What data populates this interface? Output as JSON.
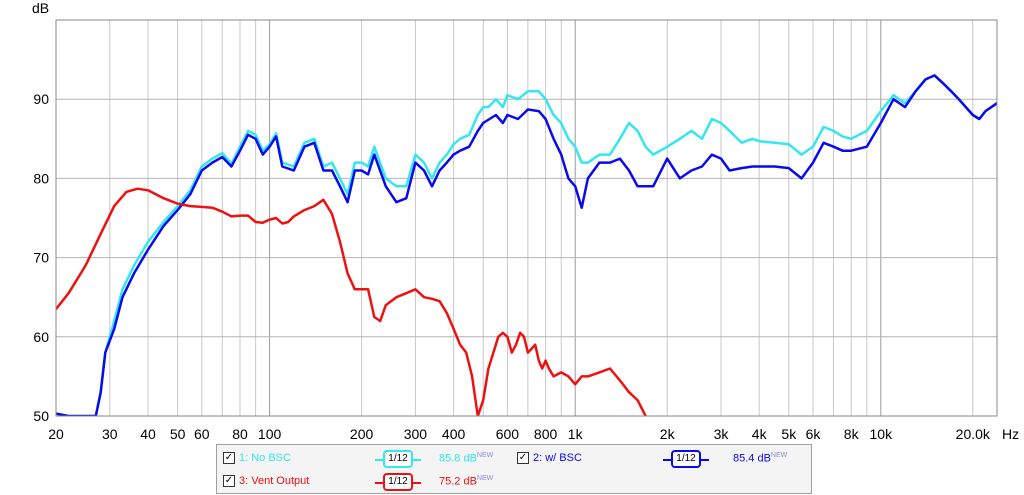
{
  "chart_data": {
    "type": "line",
    "x_scale": "log",
    "xlim": [
      20,
      24000
    ],
    "ylim": [
      50,
      100
    ],
    "ylabel": "dB",
    "xunit": "Hz",
    "grid": true,
    "y_ticks": [
      {
        "v": 50,
        "label": "50"
      },
      {
        "v": 60,
        "label": "60"
      },
      {
        "v": 70,
        "label": "70"
      },
      {
        "v": 80,
        "label": "80"
      },
      {
        "v": 90,
        "label": "90"
      }
    ],
    "x_ticks": [
      {
        "v": 20,
        "label": "20"
      },
      {
        "v": 30,
        "label": "30"
      },
      {
        "v": 40,
        "label": "40"
      },
      {
        "v": 50,
        "label": "50"
      },
      {
        "v": 60,
        "label": "60"
      },
      {
        "v": 80,
        "label": "80"
      },
      {
        "v": 100,
        "label": "100"
      },
      {
        "v": 200,
        "label": "200"
      },
      {
        "v": 300,
        "label": "300"
      },
      {
        "v": 400,
        "label": "400"
      },
      {
        "v": 600,
        "label": "600"
      },
      {
        "v": 800,
        "label": "800"
      },
      {
        "v": 1000,
        "label": "1k"
      },
      {
        "v": 2000,
        "label": "2k"
      },
      {
        "v": 3000,
        "label": "3k"
      },
      {
        "v": 4000,
        "label": "4k"
      },
      {
        "v": 5000,
        "label": "5k"
      },
      {
        "v": 6000,
        "label": "6k"
      },
      {
        "v": 8000,
        "label": "8k"
      },
      {
        "v": 10000,
        "label": "10k"
      },
      {
        "v": 20000,
        "label": "20.0k"
      }
    ],
    "series": [
      {
        "name": "1: No BSC",
        "color": "#33e6f0",
        "points": [
          [
            27,
            50
          ],
          [
            28,
            53
          ],
          [
            29,
            58
          ],
          [
            31,
            62
          ],
          [
            33,
            66
          ],
          [
            36,
            69
          ],
          [
            40,
            72
          ],
          [
            45,
            74.5
          ],
          [
            50,
            76.5
          ],
          [
            55,
            78.5
          ],
          [
            60,
            81.5
          ],
          [
            65,
            82.5
          ],
          [
            70,
            83.2
          ],
          [
            75,
            81.8
          ],
          [
            80,
            84
          ],
          [
            85,
            86
          ],
          [
            90,
            85.5
          ],
          [
            95,
            83.5
          ],
          [
            100,
            84.3
          ],
          [
            105,
            85.7
          ],
          [
            110,
            82
          ],
          [
            120,
            81.5
          ],
          [
            130,
            84.5
          ],
          [
            140,
            85
          ],
          [
            150,
            81.5
          ],
          [
            160,
            82
          ],
          [
            170,
            80
          ],
          [
            180,
            78
          ],
          [
            190,
            82
          ],
          [
            200,
            82
          ],
          [
            210,
            81.5
          ],
          [
            220,
            84
          ],
          [
            240,
            80
          ],
          [
            260,
            79
          ],
          [
            280,
            79
          ],
          [
            300,
            83
          ],
          [
            320,
            82
          ],
          [
            340,
            80
          ],
          [
            360,
            82
          ],
          [
            380,
            83
          ],
          [
            400,
            84.3
          ],
          [
            420,
            85
          ],
          [
            450,
            85.5
          ],
          [
            480,
            88
          ],
          [
            500,
            89
          ],
          [
            520,
            89
          ],
          [
            550,
            90
          ],
          [
            580,
            89
          ],
          [
            600,
            90.5
          ],
          [
            650,
            90
          ],
          [
            700,
            91
          ],
          [
            760,
            91
          ],
          [
            800,
            90
          ],
          [
            850,
            88
          ],
          [
            900,
            87
          ],
          [
            950,
            85
          ],
          [
            1000,
            84
          ],
          [
            1050,
            82
          ],
          [
            1100,
            82
          ],
          [
            1200,
            83
          ],
          [
            1300,
            83
          ],
          [
            1400,
            85
          ],
          [
            1500,
            87
          ],
          [
            1600,
            86
          ],
          [
            1700,
            84
          ],
          [
            1800,
            83
          ],
          [
            2000,
            84
          ],
          [
            2200,
            85
          ],
          [
            2400,
            86
          ],
          [
            2600,
            85
          ],
          [
            2800,
            87.5
          ],
          [
            3000,
            87
          ],
          [
            3200,
            86
          ],
          [
            3500,
            84.5
          ],
          [
            3800,
            85
          ],
          [
            4000,
            84.7
          ],
          [
            4500,
            84.5
          ],
          [
            5000,
            84.3
          ],
          [
            5500,
            83
          ],
          [
            6000,
            84
          ],
          [
            6500,
            86.5
          ],
          [
            7000,
            86
          ],
          [
            7500,
            85.3
          ],
          [
            8000,
            85
          ],
          [
            9000,
            86
          ],
          [
            10000,
            88.5
          ],
          [
            11000,
            90.5
          ],
          [
            12000,
            89.5
          ],
          [
            13000,
            91
          ],
          [
            14000,
            92.5
          ],
          [
            15000,
            93
          ],
          [
            16000,
            92
          ],
          [
            17000,
            91
          ],
          [
            18000,
            90
          ],
          [
            20000,
            88
          ],
          [
            21000,
            87.5
          ],
          [
            22000,
            88.5
          ],
          [
            24000,
            89.5
          ]
        ]
      },
      {
        "name": "2: w/ BSC",
        "color": "#0a0aee",
        "points": [
          [
            20,
            50.3
          ],
          [
            22,
            50
          ],
          [
            27,
            50
          ],
          [
            28,
            53
          ],
          [
            29,
            58
          ],
          [
            31,
            61
          ],
          [
            33,
            65
          ],
          [
            36,
            68
          ],
          [
            40,
            71
          ],
          [
            45,
            74
          ],
          [
            50,
            76
          ],
          [
            55,
            78
          ],
          [
            60,
            81
          ],
          [
            65,
            82
          ],
          [
            70,
            82.7
          ],
          [
            75,
            81.5
          ],
          [
            80,
            83.5
          ],
          [
            85,
            85.5
          ],
          [
            90,
            85
          ],
          [
            95,
            83
          ],
          [
            100,
            84
          ],
          [
            105,
            85.3
          ],
          [
            110,
            81.5
          ],
          [
            120,
            81
          ],
          [
            130,
            84
          ],
          [
            140,
            84.5
          ],
          [
            150,
            81
          ],
          [
            160,
            81
          ],
          [
            170,
            79
          ],
          [
            180,
            77
          ],
          [
            190,
            81
          ],
          [
            200,
            81
          ],
          [
            210,
            80.5
          ],
          [
            220,
            83
          ],
          [
            240,
            79
          ],
          [
            260,
            77
          ],
          [
            280,
            77.5
          ],
          [
            300,
            82
          ],
          [
            320,
            81
          ],
          [
            340,
            79
          ],
          [
            360,
            81
          ],
          [
            380,
            82
          ],
          [
            400,
            83
          ],
          [
            420,
            83.5
          ],
          [
            450,
            84
          ],
          [
            480,
            86
          ],
          [
            500,
            87
          ],
          [
            550,
            88
          ],
          [
            580,
            87
          ],
          [
            600,
            88
          ],
          [
            650,
            87.5
          ],
          [
            700,
            88.7
          ],
          [
            760,
            88.5
          ],
          [
            800,
            87.5
          ],
          [
            850,
            85
          ],
          [
            900,
            83
          ],
          [
            950,
            80
          ],
          [
            1000,
            79
          ],
          [
            1050,
            76.3
          ],
          [
            1100,
            80
          ],
          [
            1200,
            82
          ],
          [
            1300,
            82
          ],
          [
            1400,
            82.5
          ],
          [
            1500,
            81
          ],
          [
            1600,
            79
          ],
          [
            1700,
            79
          ],
          [
            1800,
            79
          ],
          [
            2000,
            82.5
          ],
          [
            2200,
            80
          ],
          [
            2400,
            81
          ],
          [
            2600,
            81.5
          ],
          [
            2800,
            83
          ],
          [
            3000,
            82.5
          ],
          [
            3200,
            81
          ],
          [
            3500,
            81.3
          ],
          [
            3800,
            81.5
          ],
          [
            4000,
            81.5
          ],
          [
            4500,
            81.5
          ],
          [
            5000,
            81.3
          ],
          [
            5500,
            80
          ],
          [
            6000,
            82
          ],
          [
            6500,
            84.5
          ],
          [
            7000,
            84
          ],
          [
            7500,
            83.5
          ],
          [
            8000,
            83.5
          ],
          [
            9000,
            84
          ],
          [
            10000,
            87
          ],
          [
            11000,
            90
          ],
          [
            12000,
            89
          ],
          [
            13000,
            91
          ],
          [
            14000,
            92.5
          ],
          [
            15000,
            93
          ],
          [
            16000,
            92
          ],
          [
            17000,
            91
          ],
          [
            18000,
            90
          ],
          [
            20000,
            88
          ],
          [
            21000,
            87.5
          ],
          [
            22000,
            88.5
          ],
          [
            24000,
            89.5
          ]
        ]
      },
      {
        "name": "3: Vent Output",
        "color": "#ee1111",
        "points": [
          [
            20,
            63.5
          ],
          [
            22,
            65.5
          ],
          [
            25,
            69
          ],
          [
            28,
            73
          ],
          [
            31,
            76.5
          ],
          [
            34,
            78.3
          ],
          [
            37,
            78.7
          ],
          [
            40,
            78.5
          ],
          [
            45,
            77.5
          ],
          [
            50,
            76.8
          ],
          [
            55,
            76.5
          ],
          [
            60,
            76.4
          ],
          [
            65,
            76.3
          ],
          [
            70,
            75.8
          ],
          [
            75,
            75.2
          ],
          [
            80,
            75.3
          ],
          [
            85,
            75.3
          ],
          [
            90,
            74.5
          ],
          [
            95,
            74.4
          ],
          [
            100,
            74.8
          ],
          [
            105,
            75
          ],
          [
            110,
            74.3
          ],
          [
            115,
            74.5
          ],
          [
            120,
            75.2
          ],
          [
            130,
            76
          ],
          [
            140,
            76.5
          ],
          [
            150,
            77.3
          ],
          [
            160,
            75.5
          ],
          [
            170,
            72
          ],
          [
            180,
            68
          ],
          [
            190,
            66
          ],
          [
            200,
            66
          ],
          [
            210,
            66
          ],
          [
            220,
            62.5
          ],
          [
            230,
            62
          ],
          [
            240,
            64
          ],
          [
            260,
            65
          ],
          [
            280,
            65.5
          ],
          [
            300,
            66
          ],
          [
            320,
            65
          ],
          [
            340,
            64.8
          ],
          [
            360,
            64.5
          ],
          [
            380,
            63
          ],
          [
            400,
            61
          ],
          [
            420,
            59
          ],
          [
            440,
            58
          ],
          [
            460,
            55
          ],
          [
            480,
            50
          ],
          [
            500,
            52
          ],
          [
            520,
            56
          ],
          [
            540,
            58
          ],
          [
            560,
            60
          ],
          [
            580,
            60.5
          ],
          [
            600,
            60
          ],
          [
            620,
            58
          ],
          [
            640,
            59
          ],
          [
            660,
            60.5
          ],
          [
            680,
            60
          ],
          [
            700,
            58
          ],
          [
            720,
            58.5
          ],
          [
            740,
            59
          ],
          [
            760,
            57
          ],
          [
            780,
            56
          ],
          [
            800,
            57
          ],
          [
            820,
            56
          ],
          [
            850,
            55
          ],
          [
            900,
            55.5
          ],
          [
            950,
            55
          ],
          [
            1000,
            54
          ],
          [
            1050,
            55
          ],
          [
            1100,
            55
          ],
          [
            1200,
            55.5
          ],
          [
            1300,
            56
          ],
          [
            1400,
            54.5
          ],
          [
            1500,
            53
          ],
          [
            1600,
            52
          ],
          [
            1700,
            50
          ]
        ]
      }
    ]
  },
  "legend": {
    "series1": {
      "label": "1: No BSC",
      "smoothing": "1/12",
      "level": "85.8 dB",
      "badge": "NEW"
    },
    "series2": {
      "label": "2: w/ BSC",
      "smoothing": "1/12",
      "level": "85.4 dB",
      "badge": "NEW"
    },
    "series3": {
      "label": "3: Vent Output",
      "smoothing": "1/12",
      "level": "75.2 dB",
      "badge": "NEW"
    },
    "check": "✓"
  }
}
